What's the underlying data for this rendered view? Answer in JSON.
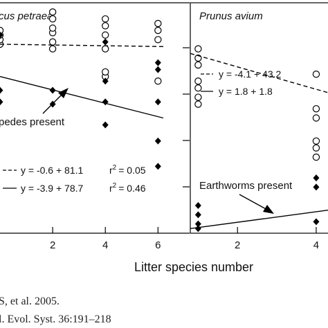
{
  "xlabel": "Litter species number",
  "citation": {
    "line1": "S, et al. 2005.",
    "line2": "l. Evol. Syst. 36:191–218"
  },
  "chart_data": [
    {
      "type": "scatter",
      "title": "cus petraea",
      "xlabel": "Litter species number",
      "xlim": [
        0,
        7.2
      ],
      "ylim": [
        0,
        100
      ],
      "xticks": [
        2,
        4,
        6
      ],
      "xtick_labels": [
        "2",
        "4",
        "6"
      ],
      "annotation": "pedes present",
      "series": [
        {
          "marker": "open-circle",
          "x": [
            0,
            0,
            0,
            0,
            2,
            2,
            2,
            2,
            2,
            2,
            4,
            4,
            4,
            4,
            4,
            4,
            6,
            6,
            6,
            6
          ],
          "y": [
            82,
            84,
            86,
            88,
            80,
            83,
            87,
            89,
            93,
            96,
            68,
            70,
            80,
            86,
            90,
            93,
            66,
            84,
            88,
            91
          ]
        },
        {
          "marker": "filled-diamond",
          "x": [
            0,
            0,
            0,
            2,
            2,
            4,
            4,
            4,
            4,
            6,
            6,
            6,
            6,
            6
          ],
          "y": [
            57,
            62,
            86,
            56,
            62,
            47,
            57,
            66,
            83,
            57,
            71,
            74,
            29,
            40
          ]
        }
      ],
      "fits": [
        {
          "style": "dashed",
          "label": "y = -0.6 + 81.1",
          "r2_prefix": "r",
          "r2_value": "= 0.05"
        },
        {
          "style": "solid",
          "label": "y = -3.9 + 78.7",
          "r2_prefix": "r",
          "r2_value": "= 0.46"
        }
      ]
    },
    {
      "type": "scatter",
      "title": "Prunus avium",
      "xlabel": "Litter species number",
      "xlim": [
        0.8,
        4.3
      ],
      "ylim": [
        0,
        100
      ],
      "xticks": [
        2,
        4
      ],
      "xtick_labels": [
        "2",
        "4"
      ],
      "annotation": "Earthworms present",
      "series": [
        {
          "marker": "open-circle",
          "x": [
            1,
            1,
            1,
            1,
            1,
            1,
            1,
            4,
            4,
            4,
            4,
            4,
            4
          ],
          "y": [
            56,
            59,
            63,
            66,
            73,
            76,
            80,
            69,
            54,
            50,
            33,
            37,
            40
          ]
        },
        {
          "marker": "filled-diamond",
          "x": [
            1,
            1,
            1,
            1,
            4,
            4,
            4
          ],
          "y": [
            2,
            4,
            8,
            12,
            20,
            24,
            5
          ]
        }
      ],
      "fits": [
        {
          "style": "dashed",
          "label": "y = -4.1 + 43.2"
        },
        {
          "style": "solid",
          "label": "y = 1.8 + 1.8"
        }
      ]
    }
  ]
}
